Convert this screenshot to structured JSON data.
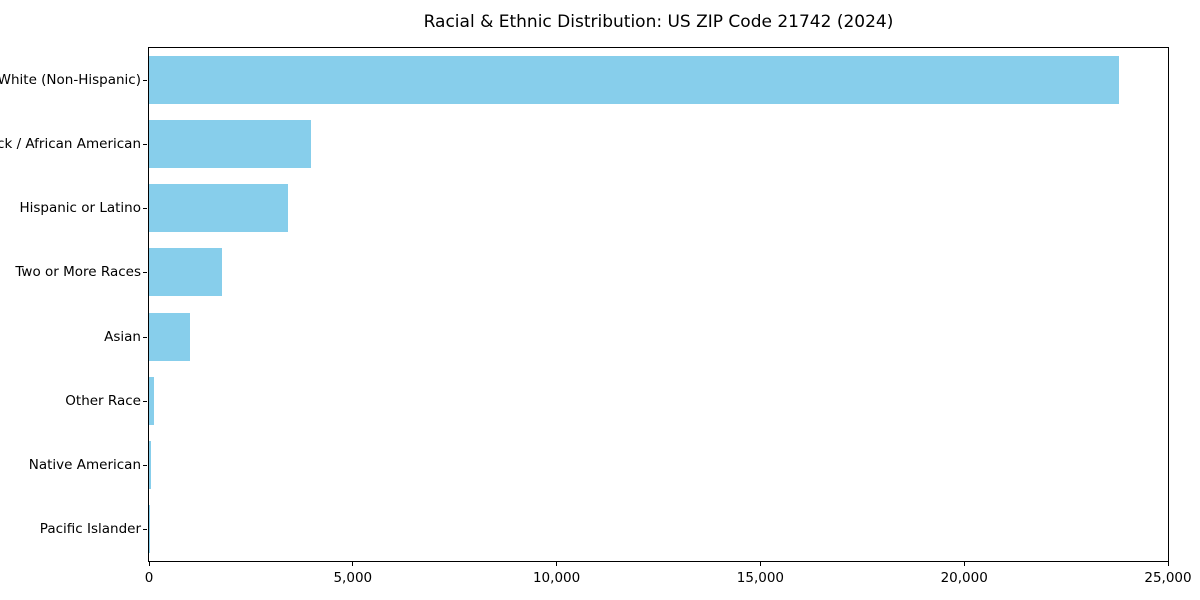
{
  "chart_data": {
    "type": "bar",
    "orientation": "horizontal",
    "title": "Racial & Ethnic Distribution: US ZIP Code 21742 (2024)",
    "categories": [
      "White (Non-Hispanic)",
      "Black / African American",
      "Hispanic or Latino",
      "Two or More Races",
      "Asian",
      "Other Race",
      "Native American",
      "Pacific Islander"
    ],
    "values": [
      23800,
      3970,
      3400,
      1790,
      1000,
      120,
      40,
      10
    ],
    "xlabel": "",
    "ylabel": "",
    "xlim": [
      0,
      25000
    ],
    "xticks": [
      0,
      5000,
      10000,
      15000,
      20000,
      25000
    ],
    "xtick_labels": [
      "0",
      "5,000",
      "10,000",
      "15,000",
      "20,000",
      "25,000"
    ],
    "bar_color": "#87CEEB",
    "axis_color": "#000000",
    "text_color": "#000000",
    "background_color": "#FFFFFF",
    "grid": false,
    "legend": "none"
  }
}
